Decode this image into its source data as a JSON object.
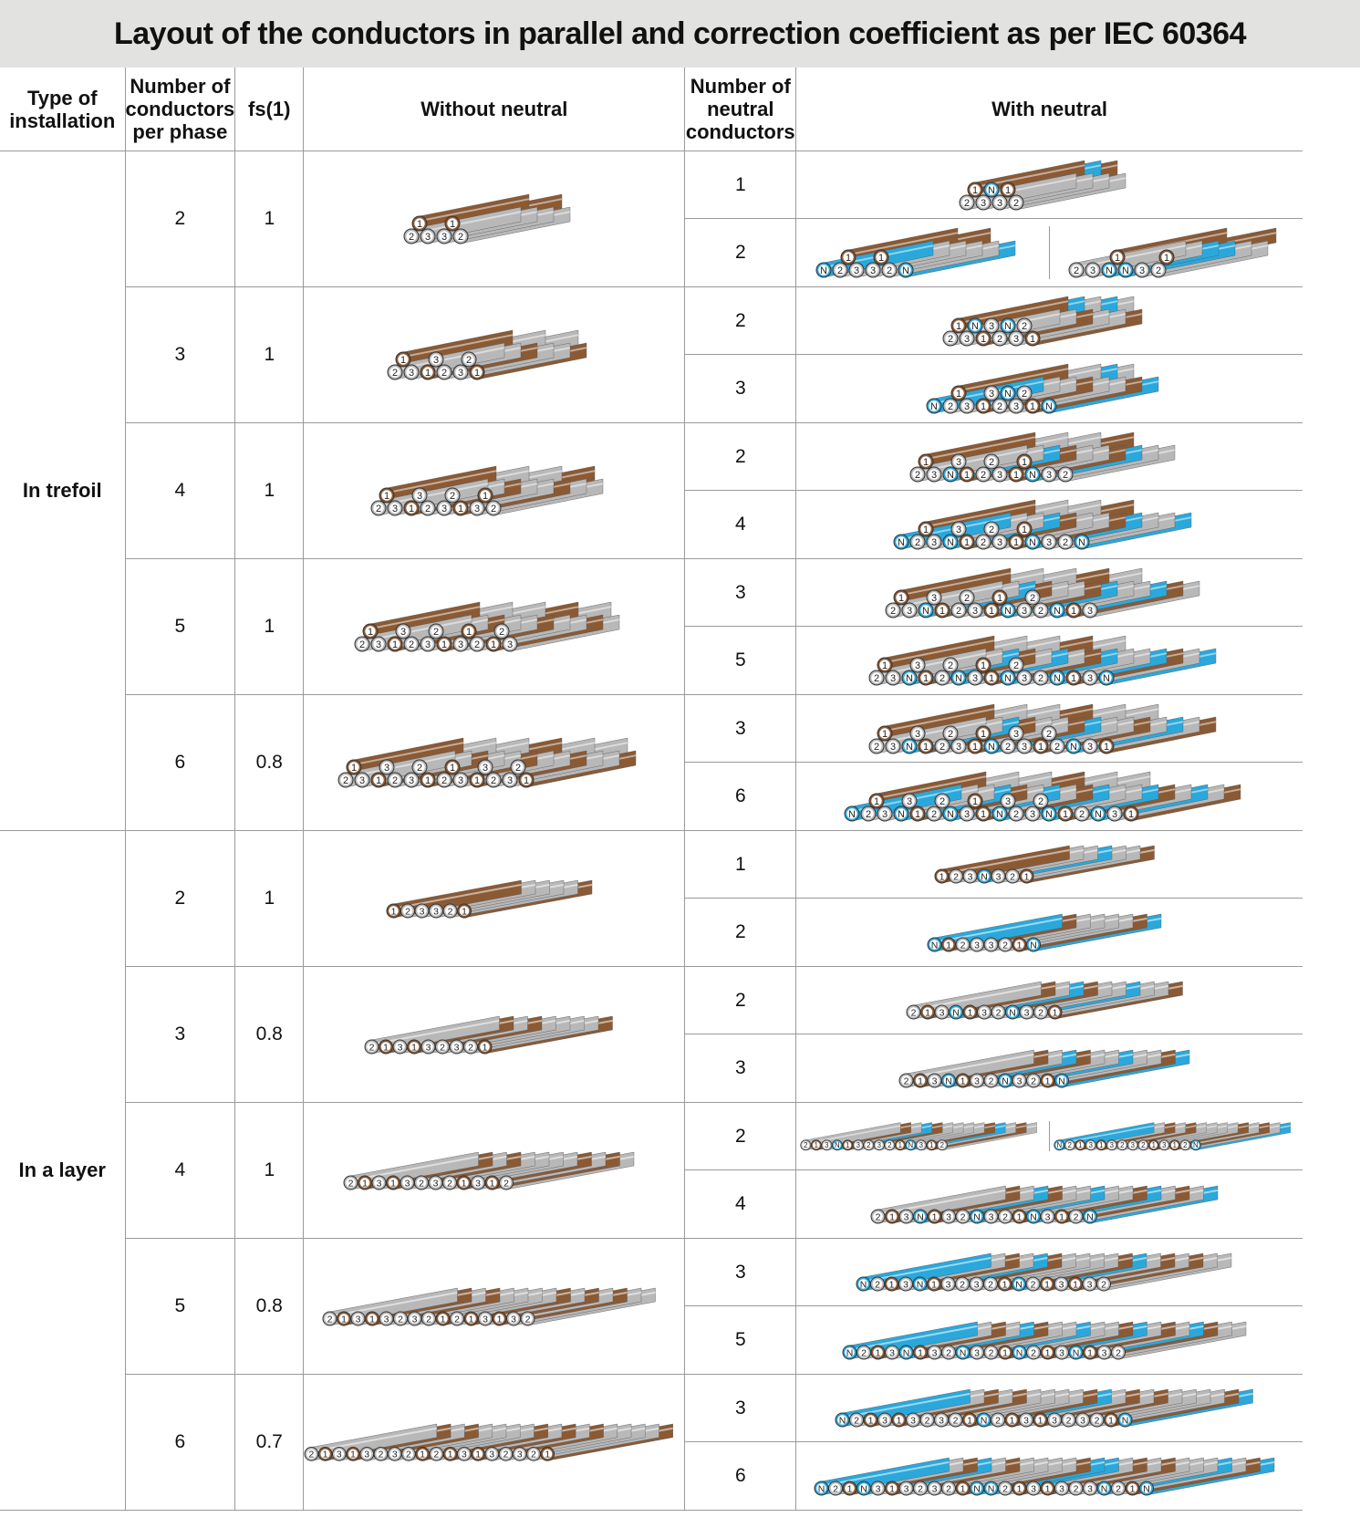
{
  "title": "Layout of the conductors in parallel and correction coefficient as per IEC 60364",
  "headers": {
    "type": "Type of installation",
    "per_phase": "Number of conductors per phase",
    "fs": "fs(1)",
    "without": "Without neutral",
    "neutral_count": "Number of neutral conductors",
    "with": "With neutral"
  },
  "colors": {
    "brown": "#8a5a35",
    "grey": "#b8b8b8",
    "blue": "#2aa8dc",
    "border": "#9a9a9a",
    "title_bg": "#e2e2e0"
  },
  "sections": [
    {
      "type": "In trefoil",
      "rows": [
        {
          "n": "2",
          "fs": "1",
          "wo": {
            "mode": "trefoil",
            "top": [
              "1",
              "",
              "1",
              ""
            ],
            "bottom": [
              "2",
              "3",
              "3",
              "2"
            ]
          },
          "with": [
            {
              "nn": "1",
              "cells": [
                {
                  "mode": "trefoil",
                  "top": [
                    "1",
                    "N",
                    "1"
                  ],
                  "bottom": [
                    "2",
                    "3",
                    "3",
                    "2"
                  ]
                }
              ]
            },
            {
              "nn": "2",
              "cells": [
                {
                  "mode": "trefoil",
                  "top": [
                    "",
                    "1",
                    "",
                    "1",
                    ""
                  ],
                  "bottom": [
                    "N",
                    "2",
                    "3",
                    "3",
                    "2",
                    "N"
                  ]
                },
                {
                  "mode": "trefoil",
                  "top": [
                    "",
                    "",
                    "1",
                    "",
                    "",
                    "1"
                  ],
                  "bottom": [
                    "2",
                    "3",
                    "N",
                    "N",
                    "3",
                    "2"
                  ]
                }
              ]
            }
          ]
        },
        {
          "n": "3",
          "fs": "1",
          "wo": {
            "mode": "trefoil",
            "top": [
              "1",
              "",
              "3",
              "",
              "2",
              ""
            ],
            "bottom": [
              "2",
              "3",
              "1",
              "2",
              "3",
              "1"
            ]
          },
          "with": [
            {
              "nn": "2",
              "cells": [
                {
                  "mode": "trefoil",
                  "top": [
                    "1",
                    "N",
                    "3",
                    "N",
                    "2"
                  ],
                  "bottom": [
                    "2",
                    "3",
                    "1",
                    "2",
                    "3",
                    "1"
                  ]
                }
              ]
            },
            {
              "nn": "3",
              "cells": [
                {
                  "mode": "trefoil",
                  "top": [
                    "",
                    "1",
                    "",
                    "3",
                    "N",
                    "2"
                  ],
                  "bottom": [
                    "N",
                    "2",
                    "3",
                    "1",
                    "2",
                    "3",
                    "1",
                    "N"
                  ]
                }
              ]
            }
          ]
        },
        {
          "n": "4",
          "fs": "1",
          "wo": {
            "mode": "trefoil",
            "top": [
              "1",
              "",
              "3",
              "",
              "2",
              "",
              "1"
            ],
            "bottom": [
              "2",
              "3",
              "1",
              "2",
              "3",
              "1",
              "3",
              "2"
            ]
          },
          "with": [
            {
              "nn": "2",
              "cells": [
                {
                  "mode": "trefoil",
                  "top": [
                    "1",
                    "",
                    "3",
                    "",
                    "2",
                    "",
                    "1"
                  ],
                  "bottom": [
                    "2",
                    "3",
                    "N",
                    "1",
                    "2",
                    "3",
                    "1",
                    "N",
                    "3",
                    "2"
                  ]
                }
              ]
            },
            {
              "nn": "4",
              "cells": [
                {
                  "mode": "trefoil",
                  "top": [
                    "",
                    "1",
                    "",
                    "3",
                    "",
                    "2",
                    "",
                    "1"
                  ],
                  "bottom": [
                    "N",
                    "2",
                    "3",
                    "N",
                    "1",
                    "2",
                    "3",
                    "1",
                    "N",
                    "3",
                    "2",
                    "N"
                  ]
                }
              ]
            }
          ]
        },
        {
          "n": "5",
          "fs": "1",
          "wo": {
            "mode": "trefoil",
            "top": [
              "1",
              "",
              "3",
              "",
              "2",
              "",
              "1",
              "",
              "2"
            ],
            "bottom": [
              "2",
              "3",
              "1",
              "2",
              "3",
              "1",
              "3",
              "2",
              "1",
              "3"
            ]
          },
          "with": [
            {
              "nn": "3",
              "cells": [
                {
                  "mode": "trefoil",
                  "top": [
                    "1",
                    "",
                    "3",
                    "",
                    "2",
                    "",
                    "1",
                    "",
                    "2"
                  ],
                  "bottom": [
                    "2",
                    "3",
                    "N",
                    "1",
                    "2",
                    "3",
                    "1",
                    "N",
                    "3",
                    "2",
                    "N",
                    "1",
                    "3"
                  ]
                }
              ]
            },
            {
              "nn": "5",
              "cells": [
                {
                  "mode": "trefoil",
                  "top": [
                    "1",
                    "",
                    "3",
                    "",
                    "2",
                    "",
                    "1",
                    "",
                    "2"
                  ],
                  "bottom": [
                    "2",
                    "3",
                    "N",
                    "1",
                    "2",
                    "N",
                    "3",
                    "1",
                    "N",
                    "3",
                    "2",
                    "N",
                    "1",
                    "3",
                    "N"
                  ]
                }
              ]
            }
          ]
        },
        {
          "n": "6",
          "fs": "0.8",
          "wo": {
            "mode": "trefoil",
            "top": [
              "1",
              "",
              "3",
              "",
              "2",
              "",
              "1",
              "",
              "3",
              "",
              "2"
            ],
            "bottom": [
              "2",
              "3",
              "1",
              "2",
              "3",
              "1",
              "2",
              "3",
              "1",
              "2",
              "3",
              "1"
            ]
          },
          "with": [
            {
              "nn": "3",
              "cells": [
                {
                  "mode": "trefoil",
                  "top": [
                    "1",
                    "",
                    "3",
                    "",
                    "2",
                    "",
                    "1",
                    "",
                    "3",
                    "",
                    "2"
                  ],
                  "bottom": [
                    "2",
                    "3",
                    "N",
                    "1",
                    "2",
                    "3",
                    "1",
                    "N",
                    "2",
                    "3",
                    "1",
                    "2",
                    "N",
                    "3",
                    "1"
                  ]
                }
              ]
            },
            {
              "nn": "6",
              "cells": [
                {
                  "mode": "trefoil",
                  "top": [
                    "",
                    "1",
                    "",
                    "3",
                    "",
                    "2",
                    "",
                    "1",
                    "",
                    "3",
                    "",
                    "2"
                  ],
                  "bottom": [
                    "N",
                    "2",
                    "3",
                    "N",
                    "1",
                    "2",
                    "N",
                    "3",
                    "1",
                    "N",
                    "2",
                    "3",
                    "N",
                    "1",
                    "2",
                    "N",
                    "3",
                    "1"
                  ]
                }
              ]
            }
          ]
        }
      ]
    },
    {
      "type": "In a layer",
      "rows": [
        {
          "n": "2",
          "fs": "1",
          "wo": {
            "mode": "layer",
            "seq": [
              "1",
              "2",
              "3",
              "3",
              "2",
              "1"
            ]
          },
          "with": [
            {
              "nn": "1",
              "cells": [
                {
                  "mode": "layer",
                  "seq": [
                    "1",
                    "2",
                    "3",
                    "N",
                    "3",
                    "2",
                    "1"
                  ]
                }
              ]
            },
            {
              "nn": "2",
              "cells": [
                {
                  "mode": "layer",
                  "seq": [
                    "N",
                    "1",
                    "2",
                    "3",
                    "3",
                    "2",
                    "1",
                    "N"
                  ]
                }
              ]
            }
          ]
        },
        {
          "n": "3",
          "fs": "0.8",
          "wo": {
            "mode": "layer",
            "seq": [
              "2",
              "1",
              "3",
              "1",
              "3",
              "2",
              "3",
              "2",
              "1"
            ]
          },
          "with": [
            {
              "nn": "2",
              "cells": [
                {
                  "mode": "layer",
                  "seq": [
                    "2",
                    "1",
                    "3",
                    "N",
                    "1",
                    "3",
                    "2",
                    "N",
                    "3",
                    "2",
                    "1"
                  ]
                }
              ]
            },
            {
              "nn": "3",
              "cells": [
                {
                  "mode": "layer",
                  "seq": [
                    "2",
                    "1",
                    "3",
                    "N",
                    "1",
                    "3",
                    "2",
                    "N",
                    "3",
                    "2",
                    "1",
                    "N"
                  ]
                }
              ]
            }
          ]
        },
        {
          "n": "4",
          "fs": "1",
          "wo": {
            "mode": "layer",
            "seq": [
              "2",
              "1",
              "3",
              "1",
              "3",
              "2",
              "3",
              "2",
              "1",
              "3",
              "1",
              "2"
            ]
          },
          "with": [
            {
              "nn": "2",
              "cells": [
                {
                  "mode": "layer",
                  "seq": [
                    "2",
                    "1",
                    "3",
                    "N",
                    "1",
                    "3",
                    "2",
                    "3",
                    "2",
                    "1",
                    "N",
                    "3",
                    "1",
                    "2"
                  ]
                },
                {
                  "mode": "layer",
                  "seq": [
                    "N",
                    "2",
                    "1",
                    "3",
                    "1",
                    "3",
                    "2",
                    "3",
                    "2",
                    "1",
                    "3",
                    "1",
                    "2",
                    "N"
                  ]
                }
              ]
            },
            {
              "nn": "4",
              "cells": [
                {
                  "mode": "layer",
                  "seq": [
                    "2",
                    "1",
                    "3",
                    "N",
                    "1",
                    "3",
                    "2",
                    "N",
                    "3",
                    "2",
                    "1",
                    "N",
                    "3",
                    "1",
                    "2",
                    "N"
                  ]
                }
              ]
            }
          ]
        },
        {
          "n": "5",
          "fs": "0.8",
          "wo": {
            "mode": "layer",
            "seq": [
              "2",
              "1",
              "3",
              "1",
              "3",
              "2",
              "3",
              "2",
              "1",
              "2",
              "1",
              "3",
              "1",
              "3",
              "2"
            ]
          },
          "with": [
            {
              "nn": "3",
              "cells": [
                {
                  "mode": "layer",
                  "seq": [
                    "N",
                    "2",
                    "1",
                    "3",
                    "N",
                    "1",
                    "3",
                    "2",
                    "3",
                    "2",
                    "1",
                    "N",
                    "2",
                    "1",
                    "3",
                    "1",
                    "3",
                    "2"
                  ]
                }
              ]
            },
            {
              "nn": "5",
              "cells": [
                {
                  "mode": "layer",
                  "seq": [
                    "N",
                    "2",
                    "1",
                    "3",
                    "N",
                    "1",
                    "3",
                    "2",
                    "N",
                    "3",
                    "2",
                    "1",
                    "N",
                    "2",
                    "1",
                    "3",
                    "N",
                    "1",
                    "3",
                    "2"
                  ]
                }
              ]
            }
          ]
        },
        {
          "n": "6",
          "fs": "0.7",
          "wo": {
            "mode": "layer",
            "seq": [
              "2",
              "1",
              "3",
              "1",
              "3",
              "2",
              "3",
              "2",
              "1",
              "2",
              "1",
              "3",
              "1",
              "3",
              "2",
              "3",
              "2",
              "1"
            ]
          },
          "with": [
            {
              "nn": "3",
              "cells": [
                {
                  "mode": "layer",
                  "seq": [
                    "N",
                    "2",
                    "1",
                    "3",
                    "1",
                    "3",
                    "2",
                    "3",
                    "2",
                    "1",
                    "N",
                    "2",
                    "1",
                    "3",
                    "1",
                    "3",
                    "2",
                    "3",
                    "2",
                    "1",
                    "N"
                  ]
                }
              ]
            },
            {
              "nn": "6",
              "cells": [
                {
                  "mode": "layer",
                  "seq": [
                    "N",
                    "2",
                    "1",
                    "N",
                    "3",
                    "1",
                    "3",
                    "2",
                    "3",
                    "2",
                    "1",
                    "N",
                    "N",
                    "2",
                    "1",
                    "3",
                    "1",
                    "3",
                    "2",
                    "3",
                    "N",
                    "2",
                    "1",
                    "N"
                  ]
                }
              ]
            }
          ]
        }
      ]
    }
  ]
}
